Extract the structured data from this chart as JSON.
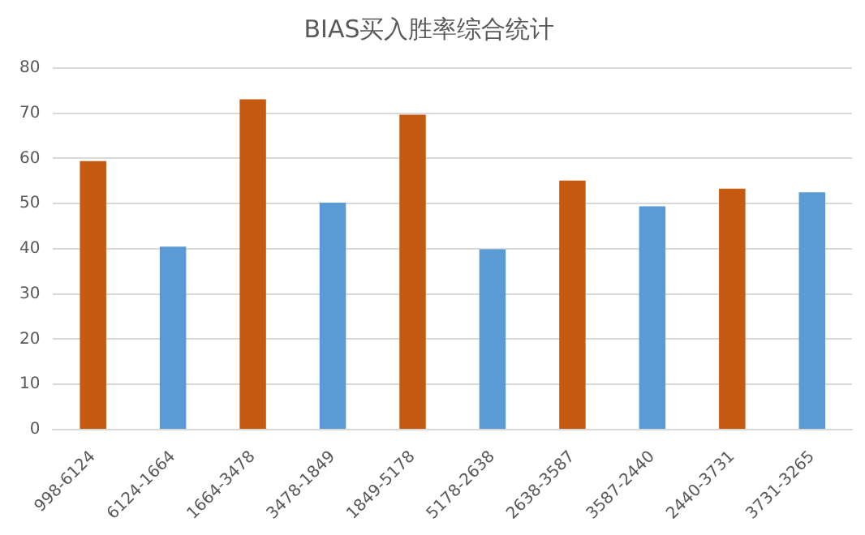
{
  "chart_data": {
    "type": "bar",
    "title": "BIAS买入胜率综合统计",
    "categories": [
      "998-6124",
      "6124-1664",
      "1664-3478",
      "3478-1849",
      "1849-5178",
      "5178-2638",
      "2638-3587",
      "3587-2440",
      "2440-3731",
      "3731-3265"
    ],
    "values": [
      59.4,
      40.5,
      73.1,
      50.2,
      69.7,
      39.9,
      55.1,
      49.4,
      53.3,
      52.5
    ],
    "colors": [
      "#c55a11",
      "#5b9bd5",
      "#c55a11",
      "#5b9bd5",
      "#c55a11",
      "#5b9bd5",
      "#c55a11",
      "#5b9bd5",
      "#c55a11",
      "#5b9bd5"
    ],
    "ylim": [
      0,
      80
    ],
    "yticks": [
      0,
      10,
      20,
      30,
      40,
      50,
      60,
      70,
      80
    ],
    "grid": "y",
    "legend": false
  }
}
